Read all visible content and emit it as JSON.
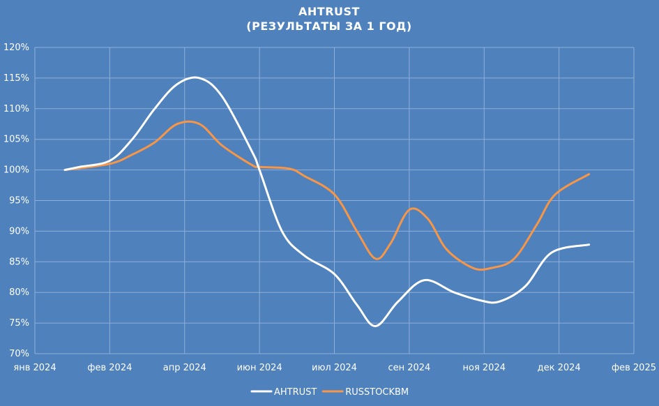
{
  "chart_data": {
    "type": "line",
    "title": "AHTRUST",
    "subtitle": "(РЕЗУЛЬТАТЫ ЗА 1 ГОД)",
    "xlabel": "",
    "ylabel": "",
    "x_ticks": [
      "янв 2024",
      "фев 2024",
      "апр 2024",
      "июн 2024",
      "июл 2024",
      "сен 2024",
      "ноя 2024",
      "дек 2024",
      "фев 2025"
    ],
    "y_ticks": [
      "70%",
      "75%",
      "80%",
      "85%",
      "90%",
      "95%",
      "100%",
      "105%",
      "110%",
      "115%",
      "120%"
    ],
    "y_tick_values": [
      70,
      75,
      80,
      85,
      90,
      95,
      100,
      105,
      110,
      115,
      120
    ],
    "ylim": [
      70,
      120
    ],
    "grid": true,
    "legend_position": "bottom",
    "background_color": "#4f81bd",
    "x_axis_range": [
      0,
      8
    ],
    "series": [
      {
        "name": "AHTRUST",
        "color": "#ffffff",
        "x": [
          0.4,
          0.6,
          1.0,
          1.3,
          1.6,
          1.9,
          2.2,
          2.5,
          2.9,
          3.0,
          3.3,
          3.6,
          4.0,
          4.3,
          4.55,
          4.85,
          5.2,
          5.6,
          5.95,
          6.2,
          6.55,
          6.9,
          7.4
        ],
        "values": [
          100,
          100.5,
          101.5,
          105,
          110,
          114,
          115,
          112,
          103,
          100,
          90,
          86,
          83,
          78,
          74.5,
          78.5,
          82,
          80,
          78.7,
          78.5,
          81,
          86.5,
          87.8
        ]
      },
      {
        "name": "RUSSTOCKBM",
        "color": "#f79646",
        "x": [
          0.4,
          1.0,
          1.3,
          1.6,
          1.9,
          2.2,
          2.5,
          2.9,
          3.0,
          3.4,
          3.6,
          4.0,
          4.3,
          4.55,
          4.75,
          5.0,
          5.25,
          5.5,
          5.85,
          6.1,
          6.4,
          6.7,
          6.95,
          7.4
        ],
        "values": [
          100,
          101,
          102.5,
          104.5,
          107.5,
          107.5,
          104,
          100.8,
          100.5,
          100.2,
          99,
          96,
          90,
          85.5,
          88,
          93.5,
          92,
          87,
          84,
          84,
          85.5,
          91,
          96,
          99.3
        ]
      }
    ]
  }
}
